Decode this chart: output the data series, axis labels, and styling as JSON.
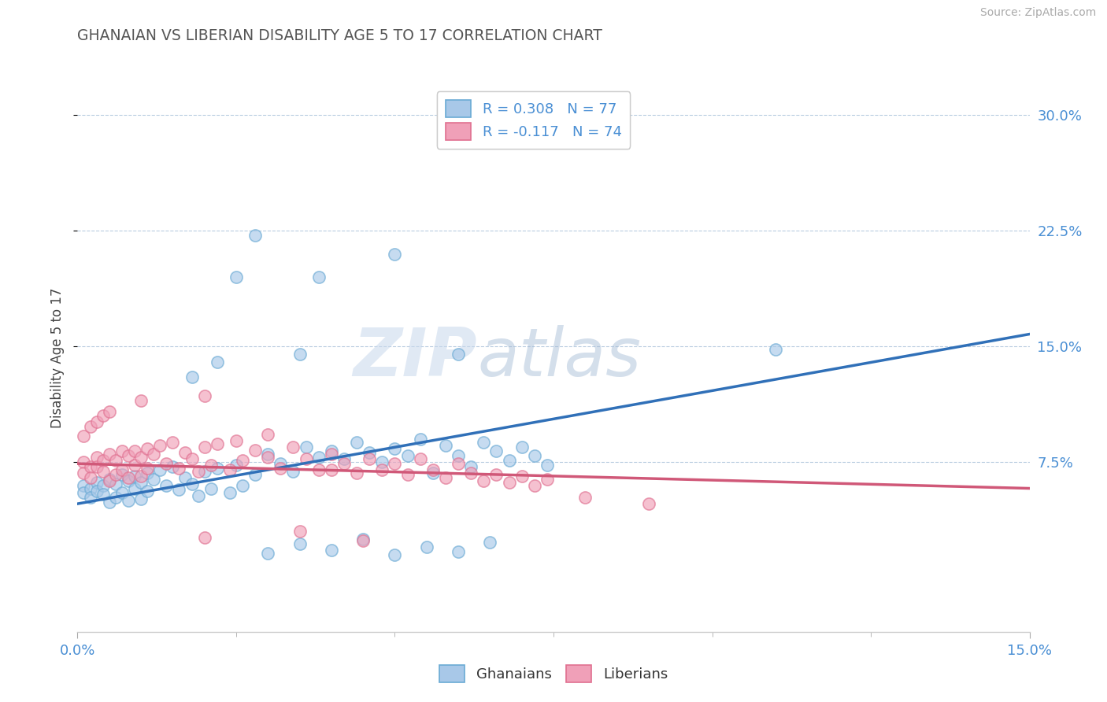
{
  "title": "GHANAIAN VS LIBERIAN DISABILITY AGE 5 TO 17 CORRELATION CHART",
  "source": "Source: ZipAtlas.com",
  "ylabel_label": "Disability Age 5 to 17",
  "watermark_zip": "ZIP",
  "watermark_atlas": "atlas",
  "blue_label_r": "R = 0.308",
  "blue_label_n": "N = 77",
  "pink_label_r": "R = -0.117",
  "pink_label_n": "N = 74",
  "legend_blue": "Ghanaians",
  "legend_pink": "Liberians",
  "blue_fill": "#a8c8e8",
  "blue_edge": "#6aaad4",
  "blue_line": "#3070b8",
  "pink_fill": "#f0a0b8",
  "pink_edge": "#e07090",
  "pink_line": "#d05878",
  "grid_color": "#b8cce0",
  "title_color": "#555555",
  "axis_tick_color": "#4a8fd4",
  "ylabel_color": "#444444",
  "source_color": "#aaaaaa",
  "background": "#ffffff",
  "xlim": [
    0.0,
    0.15
  ],
  "ylim": [
    -0.035,
    0.32
  ],
  "yticks": [
    0.075,
    0.15,
    0.225,
    0.3
  ],
  "xticks": [
    0.0,
    0.15
  ],
  "xtick_inner": [
    0.025,
    0.05,
    0.075,
    0.1,
    0.125
  ],
  "blue_trend_x": [
    0.0,
    0.15
  ],
  "blue_trend_y": [
    0.048,
    0.158
  ],
  "pink_trend_x": [
    0.0,
    0.15
  ],
  "pink_trend_y": [
    0.074,
    0.058
  ],
  "blue_scatter": [
    [
      0.001,
      0.06
    ],
    [
      0.001,
      0.055
    ],
    [
      0.002,
      0.058
    ],
    [
      0.002,
      0.052
    ],
    [
      0.003,
      0.062
    ],
    [
      0.003,
      0.056
    ],
    [
      0.004,
      0.06
    ],
    [
      0.004,
      0.054
    ],
    [
      0.005,
      0.064
    ],
    [
      0.005,
      0.049
    ],
    [
      0.006,
      0.061
    ],
    [
      0.006,
      0.052
    ],
    [
      0.007,
      0.067
    ],
    [
      0.007,
      0.055
    ],
    [
      0.008,
      0.063
    ],
    [
      0.008,
      0.05
    ],
    [
      0.009,
      0.066
    ],
    [
      0.009,
      0.058
    ],
    [
      0.01,
      0.062
    ],
    [
      0.01,
      0.051
    ],
    [
      0.011,
      0.068
    ],
    [
      0.011,
      0.056
    ],
    [
      0.012,
      0.064
    ],
    [
      0.013,
      0.07
    ],
    [
      0.014,
      0.06
    ],
    [
      0.015,
      0.072
    ],
    [
      0.016,
      0.057
    ],
    [
      0.017,
      0.065
    ],
    [
      0.018,
      0.061
    ],
    [
      0.019,
      0.053
    ],
    [
      0.02,
      0.069
    ],
    [
      0.021,
      0.058
    ],
    [
      0.022,
      0.071
    ],
    [
      0.024,
      0.055
    ],
    [
      0.025,
      0.073
    ],
    [
      0.026,
      0.06
    ],
    [
      0.028,
      0.067
    ],
    [
      0.03,
      0.08
    ],
    [
      0.032,
      0.074
    ],
    [
      0.034,
      0.069
    ],
    [
      0.036,
      0.085
    ],
    [
      0.038,
      0.078
    ],
    [
      0.04,
      0.082
    ],
    [
      0.042,
      0.077
    ],
    [
      0.044,
      0.088
    ],
    [
      0.046,
      0.081
    ],
    [
      0.048,
      0.075
    ],
    [
      0.05,
      0.084
    ],
    [
      0.052,
      0.079
    ],
    [
      0.054,
      0.09
    ],
    [
      0.056,
      0.068
    ],
    [
      0.058,
      0.086
    ],
    [
      0.06,
      0.079
    ],
    [
      0.062,
      0.072
    ],
    [
      0.064,
      0.088
    ],
    [
      0.066,
      0.082
    ],
    [
      0.068,
      0.076
    ],
    [
      0.07,
      0.085
    ],
    [
      0.072,
      0.079
    ],
    [
      0.074,
      0.073
    ],
    [
      0.03,
      0.016
    ],
    [
      0.035,
      0.022
    ],
    [
      0.04,
      0.018
    ],
    [
      0.045,
      0.025
    ],
    [
      0.05,
      0.015
    ],
    [
      0.055,
      0.02
    ],
    [
      0.06,
      0.017
    ],
    [
      0.065,
      0.023
    ],
    [
      0.11,
      0.148
    ],
    [
      0.025,
      0.195
    ],
    [
      0.028,
      0.222
    ],
    [
      0.038,
      0.195
    ],
    [
      0.05,
      0.21
    ],
    [
      0.06,
      0.145
    ],
    [
      0.018,
      0.13
    ],
    [
      0.022,
      0.14
    ],
    [
      0.035,
      0.145
    ]
  ],
  "pink_scatter": [
    [
      0.001,
      0.075
    ],
    [
      0.001,
      0.068
    ],
    [
      0.002,
      0.072
    ],
    [
      0.002,
      0.065
    ],
    [
      0.003,
      0.078
    ],
    [
      0.003,
      0.072
    ],
    [
      0.004,
      0.076
    ],
    [
      0.004,
      0.069
    ],
    [
      0.005,
      0.08
    ],
    [
      0.005,
      0.063
    ],
    [
      0.006,
      0.076
    ],
    [
      0.006,
      0.067
    ],
    [
      0.007,
      0.082
    ],
    [
      0.007,
      0.07
    ],
    [
      0.008,
      0.079
    ],
    [
      0.008,
      0.065
    ],
    [
      0.009,
      0.082
    ],
    [
      0.009,
      0.073
    ],
    [
      0.01,
      0.078
    ],
    [
      0.01,
      0.066
    ],
    [
      0.011,
      0.084
    ],
    [
      0.011,
      0.071
    ],
    [
      0.012,
      0.08
    ],
    [
      0.013,
      0.086
    ],
    [
      0.014,
      0.074
    ],
    [
      0.015,
      0.088
    ],
    [
      0.016,
      0.071
    ],
    [
      0.017,
      0.081
    ],
    [
      0.018,
      0.077
    ],
    [
      0.019,
      0.069
    ],
    [
      0.02,
      0.085
    ],
    [
      0.021,
      0.073
    ],
    [
      0.022,
      0.087
    ],
    [
      0.024,
      0.07
    ],
    [
      0.025,
      0.089
    ],
    [
      0.026,
      0.076
    ],
    [
      0.028,
      0.083
    ],
    [
      0.03,
      0.078
    ],
    [
      0.032,
      0.071
    ],
    [
      0.034,
      0.085
    ],
    [
      0.036,
      0.077
    ],
    [
      0.038,
      0.07
    ],
    [
      0.04,
      0.08
    ],
    [
      0.042,
      0.074
    ],
    [
      0.044,
      0.068
    ],
    [
      0.046,
      0.077
    ],
    [
      0.048,
      0.07
    ],
    [
      0.05,
      0.074
    ],
    [
      0.052,
      0.067
    ],
    [
      0.054,
      0.077
    ],
    [
      0.056,
      0.07
    ],
    [
      0.058,
      0.065
    ],
    [
      0.06,
      0.074
    ],
    [
      0.062,
      0.068
    ],
    [
      0.064,
      0.063
    ],
    [
      0.066,
      0.067
    ],
    [
      0.068,
      0.062
    ],
    [
      0.07,
      0.066
    ],
    [
      0.072,
      0.06
    ],
    [
      0.074,
      0.064
    ],
    [
      0.001,
      0.092
    ],
    [
      0.002,
      0.098
    ],
    [
      0.003,
      0.101
    ],
    [
      0.004,
      0.105
    ],
    [
      0.005,
      0.108
    ],
    [
      0.01,
      0.115
    ],
    [
      0.02,
      0.118
    ],
    [
      0.03,
      0.093
    ],
    [
      0.04,
      0.07
    ],
    [
      0.08,
      0.052
    ],
    [
      0.09,
      0.048
    ],
    [
      0.02,
      0.026
    ],
    [
      0.035,
      0.03
    ],
    [
      0.045,
      0.024
    ]
  ]
}
